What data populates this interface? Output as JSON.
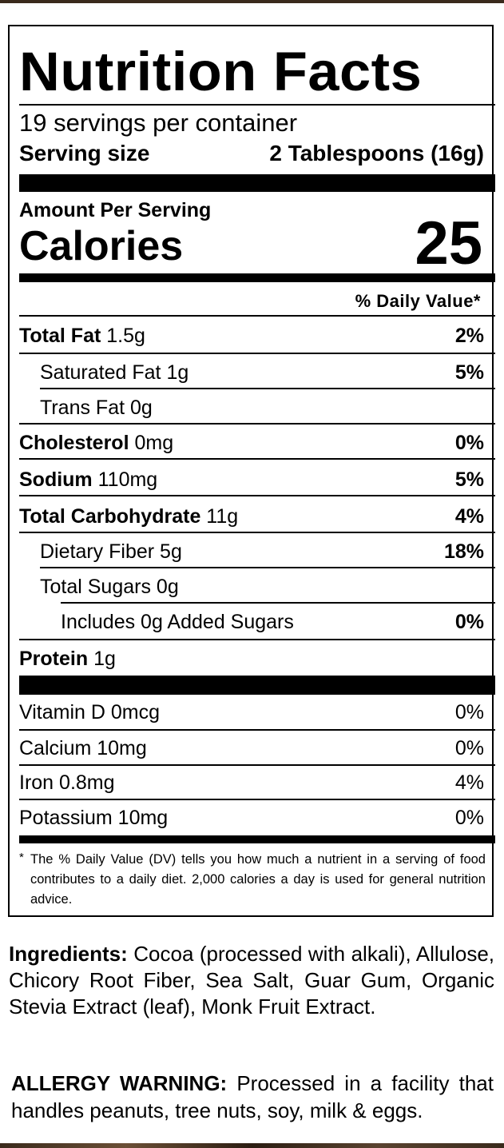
{
  "label": {
    "title": "Nutrition Facts",
    "servings": "19 servings per container",
    "serving_size_label": "Serving size",
    "serving_size_value": "2 Tablespoons (16g)",
    "amount_per_serving": "Amount Per Serving",
    "calories_label": "Calories",
    "calories_value": "25",
    "daily_value_header": "% Daily Value*",
    "nutrients": [
      {
        "name": "Total Fat",
        "amount": "1.5g",
        "dv": "2%"
      },
      {
        "name": "Saturated Fat",
        "amount": "1g",
        "dv": "5%"
      },
      {
        "name": "Trans Fat",
        "amount": "0g",
        "dv": ""
      },
      {
        "name": "Cholesterol",
        "amount": "0mg",
        "dv": "0%"
      },
      {
        "name": "Sodium",
        "amount": "110mg",
        "dv": "5%"
      },
      {
        "name": "Total Carbohydrate",
        "amount": "11g",
        "dv": "4%"
      },
      {
        "name": "Dietary Fiber",
        "amount": "5g",
        "dv": "18%"
      },
      {
        "name": "Total Sugars",
        "amount": "0g",
        "dv": ""
      },
      {
        "name": "Includes 0g Added Sugars",
        "amount": "",
        "dv": "0%"
      },
      {
        "name": "Protein",
        "amount": "1g",
        "dv": ""
      }
    ],
    "vitamins": [
      {
        "name": "Vitamin D",
        "amount": "0mcg",
        "dv": "0%"
      },
      {
        "name": "Calcium",
        "amount": "10mg",
        "dv": "0%"
      },
      {
        "name": "Iron",
        "amount": "0.8mg",
        "dv": "4%"
      },
      {
        "name": "Potassium",
        "amount": "10mg",
        "dv": "0%"
      }
    ],
    "footnote_star": "*",
    "footnote": "The % Daily Value (DV) tells you how much a nutrient in a serving of food contributes to a daily diet. 2,000 calories a day is used for general nutrition advice."
  },
  "ingredients": {
    "label": "Ingredients:",
    "text": "Cocoa (processed with alkali), Allulose, Chicory Root Fiber, Sea Salt, Guar Gum, Organic Stevia Extract (leaf), Monk Fruit Extract."
  },
  "allergy": {
    "label": "ALLERGY WARNING:",
    "text": "Processed in a facility that handles peanuts, tree nuts, soy, milk & eggs."
  }
}
